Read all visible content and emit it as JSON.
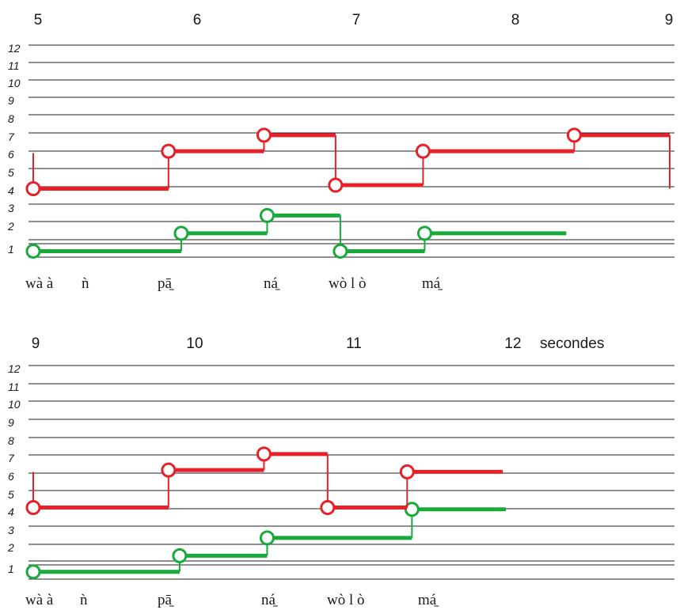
{
  "colors": {
    "red": "#e8202a",
    "green": "#1aaa3c",
    "staff": "#222222"
  },
  "panels": [
    {
      "time_labels": [
        "5",
        "6",
        "7",
        "8",
        "9"
      ],
      "level_labels": [
        "12",
        "11",
        "10",
        "9",
        "8",
        "7",
        "6",
        "5",
        "4",
        "3",
        "2",
        "1"
      ],
      "syllables": [
        "wà à",
        "ǹ",
        "pā̠",
        "ná̠",
        "wò l ò",
        "má̠"
      ],
      "time_axis": {
        "start": 5,
        "end": 9
      },
      "red_segments": [
        {
          "t0": 5.0,
          "t1": 5.85,
          "level": 4.5
        },
        {
          "t0": 5.85,
          "t1": 6.45,
          "level": 6.6
        },
        {
          "t0": 6.45,
          "t1": 6.9,
          "level": 7.5
        },
        {
          "t0": 6.9,
          "t1": 7.45,
          "level": 4.7
        },
        {
          "t0": 7.45,
          "t1": 8.4,
          "level": 6.6
        },
        {
          "t0": 8.4,
          "t1": 9.0,
          "level": 7.5
        }
      ],
      "red_circles": [
        {
          "t": 5.0,
          "level": 4.5
        },
        {
          "t": 5.85,
          "level": 6.6
        },
        {
          "t": 6.45,
          "level": 7.5
        },
        {
          "t": 6.9,
          "level": 4.7
        },
        {
          "t": 7.45,
          "level": 6.6
        },
        {
          "t": 8.4,
          "level": 7.5
        }
      ],
      "green_segments": [
        {
          "t0": 5.0,
          "t1": 5.93,
          "level": 1.0
        },
        {
          "t0": 5.93,
          "t1": 6.47,
          "level": 2.0
        },
        {
          "t0": 6.47,
          "t1": 6.93,
          "level": 3.0
        },
        {
          "t0": 6.93,
          "t1": 7.46,
          "level": 1.0
        },
        {
          "t0": 7.46,
          "t1": 8.35,
          "level": 2.0
        }
      ],
      "green_circles": [
        {
          "t": 5.0,
          "level": 1.0
        },
        {
          "t": 5.93,
          "level": 2.0
        },
        {
          "t": 6.47,
          "level": 3.0
        },
        {
          "t": 6.93,
          "level": 1.0
        },
        {
          "t": 7.46,
          "level": 2.0
        }
      ]
    },
    {
      "time_labels": [
        "9",
        "10",
        "11",
        "12"
      ],
      "unit_label": "secondes",
      "level_labels": [
        "12",
        "11",
        "10",
        "9",
        "8",
        "7",
        "6",
        "5",
        "4",
        "3",
        "2",
        "1"
      ],
      "syllables": [
        "wà à",
        "ǹ",
        "pā̠",
        "ná̠",
        "wò l ò",
        "má̠"
      ],
      "time_axis": {
        "start": 9,
        "end": 13
      },
      "red_segments": [
        {
          "t0": 9.0,
          "t1": 9.85,
          "level": 4.5
        },
        {
          "t0": 9.85,
          "t1": 10.45,
          "level": 6.6
        },
        {
          "t0": 10.45,
          "t1": 10.85,
          "level": 7.5
        },
        {
          "t0": 10.85,
          "t1": 11.35,
          "level": 4.5
        },
        {
          "t0": 11.35,
          "t1": 11.95,
          "level": 6.5
        }
      ],
      "red_circles": [
        {
          "t": 9.0,
          "level": 4.5
        },
        {
          "t": 9.85,
          "level": 6.6
        },
        {
          "t": 10.45,
          "level": 7.5
        },
        {
          "t": 10.85,
          "level": 4.5
        },
        {
          "t": 11.35,
          "level": 6.5
        }
      ],
      "green_segments": [
        {
          "t0": 9.0,
          "t1": 9.92,
          "level": 0.9
        },
        {
          "t0": 9.92,
          "t1": 10.47,
          "level": 1.8
        },
        {
          "t0": 10.47,
          "t1": 11.38,
          "level": 2.8
        },
        {
          "t0": 11.38,
          "t1": 11.97,
          "level": 4.4
        }
      ],
      "green_circles": [
        {
          "t": 9.0,
          "level": 0.9
        },
        {
          "t": 9.92,
          "level": 1.8
        },
        {
          "t": 10.47,
          "level": 2.8
        },
        {
          "t": 11.38,
          "level": 4.4
        }
      ]
    }
  ]
}
